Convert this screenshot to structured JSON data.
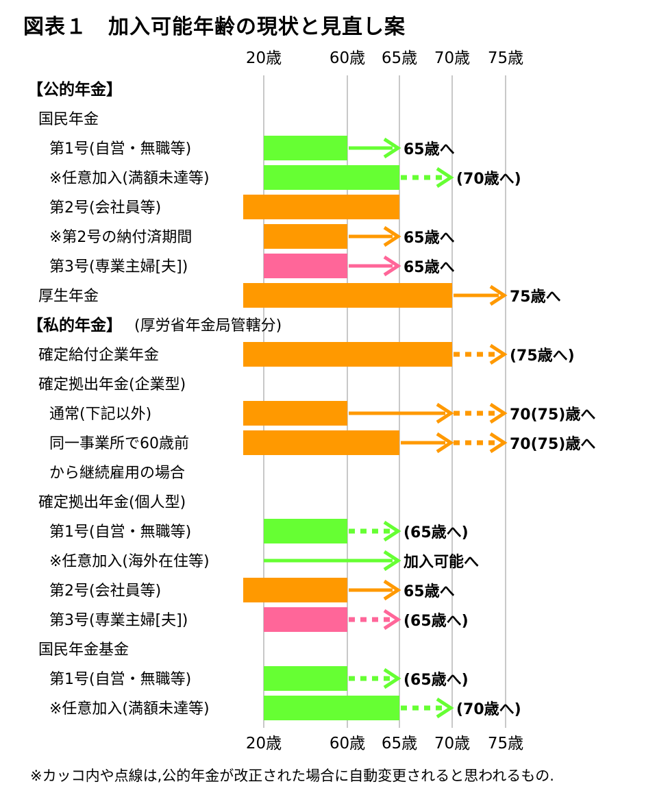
{
  "title": "図表１　加入可能年齢の現状と見直し案",
  "footnote": "※カッコ内や点線は,公的年金が改正された場合に自動変更されると思われるもの.",
  "colors": {
    "green": "#66ff33",
    "orange": "#ff9900",
    "pink": "#ff6699",
    "grid": "#c8c8c8"
  },
  "chart_data": {
    "type": "bar",
    "orientation": "horizontal-range",
    "x_ticks": [
      {
        "age": 20,
        "label": "20歳"
      },
      {
        "age": 60,
        "label": "60歳"
      },
      {
        "age": 65,
        "label": "65歳"
      },
      {
        "age": 70,
        "label": "70歳"
      },
      {
        "age": 75,
        "label": "75歳"
      }
    ],
    "rows": [
      {
        "label": "【公的年金】",
        "kind": "section"
      },
      {
        "label": "国民年金",
        "kind": "group"
      },
      {
        "label": "第1号(自営・無職等)",
        "kind": "item",
        "bar": {
          "from": 20,
          "to": 60,
          "color": "green"
        },
        "arrow": {
          "from": 60,
          "to": 65,
          "style": "solid",
          "color": "green"
        },
        "note": "65歳へ"
      },
      {
        "label": "※任意加入(満額未達等)",
        "kind": "item",
        "bar": {
          "from": 20,
          "to": 65,
          "color": "green"
        },
        "arrow": {
          "from": 65,
          "to": 70,
          "style": "dotted",
          "color": "green"
        },
        "note": "(70歳へ)"
      },
      {
        "label": "第2号(会社員等)",
        "kind": "item",
        "bar": {
          "from": "start",
          "to": 65,
          "color": "orange"
        }
      },
      {
        "label": "※第2号の納付済期間",
        "kind": "item",
        "bar": {
          "from": 20,
          "to": 60,
          "color": "orange"
        },
        "arrow": {
          "from": 60,
          "to": 65,
          "style": "solid",
          "color": "orange"
        },
        "note": "65歳へ"
      },
      {
        "label": "第3号(専業主婦[夫])",
        "kind": "item",
        "bar": {
          "from": 20,
          "to": 60,
          "color": "pink"
        },
        "arrow": {
          "from": 60,
          "to": 65,
          "style": "solid",
          "color": "pink"
        },
        "note": "65歳へ"
      },
      {
        "label": "厚生年金",
        "kind": "group-item",
        "bar": {
          "from": "start",
          "to": 70,
          "color": "orange"
        },
        "arrow": {
          "from": 70,
          "to": 75,
          "style": "solid",
          "color": "orange"
        },
        "note": "75歳へ"
      },
      {
        "label": "【私的年金】",
        "sublabel": "(厚労省年金局管轄分)",
        "kind": "section"
      },
      {
        "label": "確定給付企業年金",
        "kind": "group-item",
        "bar": {
          "from": "start",
          "to": 70,
          "color": "orange"
        },
        "arrow": {
          "from": 70,
          "to": 75,
          "style": "dotted",
          "color": "orange"
        },
        "note": "(75歳へ)"
      },
      {
        "label": "確定拠出年金(企業型)",
        "kind": "group"
      },
      {
        "label": "通常(下記以外)",
        "kind": "item",
        "bar": {
          "from": "start",
          "to": 60,
          "color": "orange"
        },
        "arrow": {
          "from": 60,
          "to": 70,
          "style": "solid",
          "color": "orange"
        },
        "arrow2": {
          "from": 70,
          "to": 75,
          "style": "dotted",
          "color": "orange"
        },
        "note": "70(75)歳へ"
      },
      {
        "label": "同一事業所で60歳前",
        "kind": "item",
        "bar": {
          "from": "start",
          "to": 65,
          "color": "orange"
        },
        "arrow": {
          "from": 65,
          "to": 70,
          "style": "solid",
          "color": "orange"
        },
        "arrow2": {
          "from": 70,
          "to": 75,
          "style": "dotted",
          "color": "orange"
        },
        "note": "70(75)歳へ"
      },
      {
        "label": "から継続雇用の場合",
        "kind": "item"
      },
      {
        "label": "確定拠出年金(個人型)",
        "kind": "group"
      },
      {
        "label": "第1号(自営・無職等)",
        "kind": "item",
        "bar": {
          "from": 20,
          "to": 60,
          "color": "green"
        },
        "arrow": {
          "from": 60,
          "to": 65,
          "style": "dotted",
          "color": "green"
        },
        "note": "(65歳へ)"
      },
      {
        "label": "※任意加入(海外在住等)",
        "kind": "item",
        "arrow": {
          "from": "start",
          "to": 65,
          "style": "solid",
          "color": "green"
        },
        "note": "加入可能へ"
      },
      {
        "label": "第2号(会社員等)",
        "kind": "item",
        "bar": {
          "from": "start",
          "to": 60,
          "color": "orange"
        },
        "arrow": {
          "from": 60,
          "to": 65,
          "style": "solid",
          "color": "orange"
        },
        "note": "65歳へ"
      },
      {
        "label": "第3号(専業主婦[夫])",
        "kind": "item",
        "bar": {
          "from": 20,
          "to": 60,
          "color": "pink"
        },
        "arrow": {
          "from": 60,
          "to": 65,
          "style": "dotted",
          "color": "pink"
        },
        "note": "(65歳へ)"
      },
      {
        "label": "国民年金基金",
        "kind": "group"
      },
      {
        "label": "第1号(自営・無職等)",
        "kind": "item",
        "bar": {
          "from": 20,
          "to": 60,
          "color": "green"
        },
        "arrow": {
          "from": 60,
          "to": 65,
          "style": "dotted",
          "color": "green"
        },
        "note": "(65歳へ)"
      },
      {
        "label": "※任意加入(満額未達等)",
        "kind": "item",
        "bar": {
          "from": 20,
          "to": 65,
          "color": "green"
        },
        "arrow": {
          "from": 65,
          "to": 70,
          "style": "dotted",
          "color": "green"
        },
        "note": "(70歳へ)"
      }
    ]
  }
}
